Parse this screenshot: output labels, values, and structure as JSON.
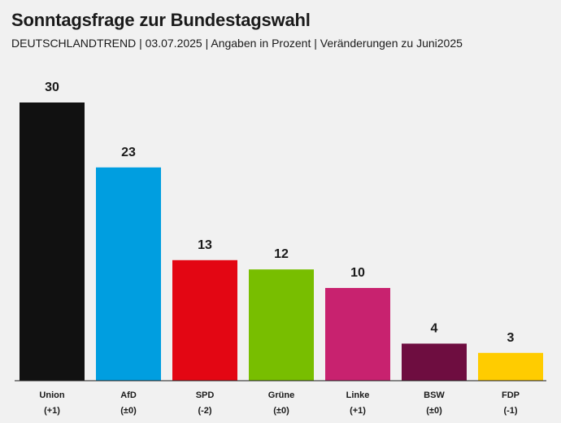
{
  "header": {
    "title": "Sonntagsfrage zur Bundestagswahl",
    "subtitle": "DEUTSCHLANDTREND | 03.07.2025 | Angaben in Prozent | Veränderungen zu Juni2025"
  },
  "chart_data": {
    "type": "bar",
    "title": "Sonntagsfrage zur Bundestagswahl",
    "subtitle": "DEUTSCHLANDTREND | 03.07.2025 | Angaben in Prozent | Veränderungen zu Juni2025",
    "categories": [
      "Union",
      "AfD",
      "SPD",
      "Grüne",
      "Linke",
      "BSW",
      "FDP"
    ],
    "values": [
      30,
      23,
      13,
      12,
      10,
      4,
      3
    ],
    "changes": [
      "(+1)",
      "(±0)",
      "(-2)",
      "(±0)",
      "(+1)",
      "(±0)",
      "(-1)"
    ],
    "colors": [
      "#111111",
      "#009ee0",
      "#e30613",
      "#78be00",
      "#c8226f",
      "#6e0d40",
      "#ffcc00"
    ],
    "ylim": [
      0,
      30
    ],
    "grid": false,
    "legend": "none"
  }
}
